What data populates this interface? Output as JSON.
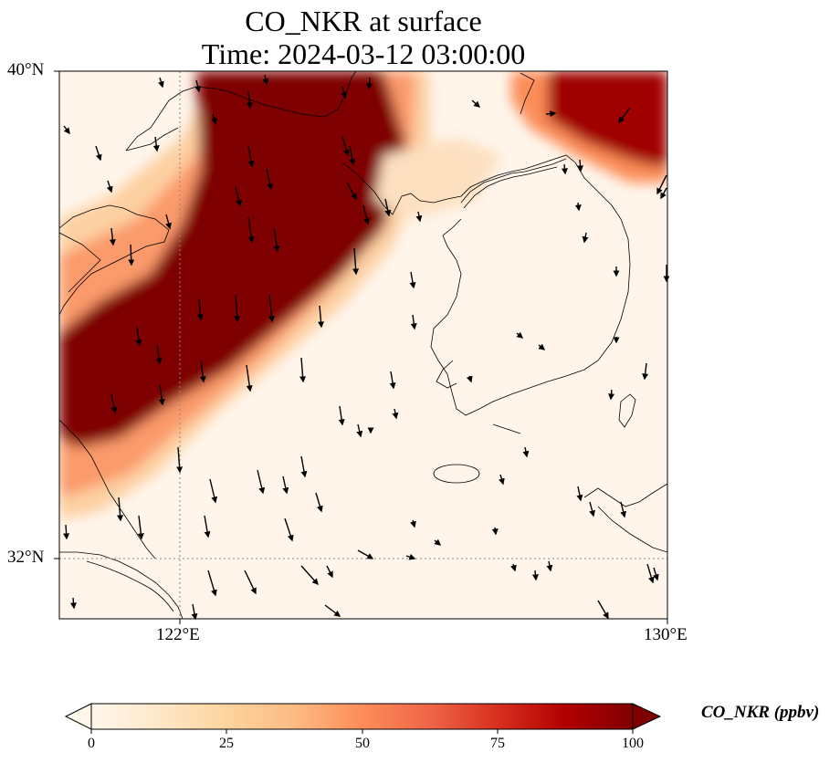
{
  "title": {
    "line1": "CO_NKR at surface",
    "line2": "Time: 2024-03-12 03:00:00"
  },
  "map": {
    "lat_ticks": [
      "40°N",
      "32°N"
    ],
    "lon_ticks": [
      "122°E",
      "130°E"
    ],
    "extent": {
      "lon": [
        120,
        130
      ],
      "lat": [
        31,
        40
      ]
    },
    "gridlines": {
      "lon": 122,
      "lat": 32,
      "style": "dotted"
    },
    "field_colors": {
      "low": "#fff5eb",
      "mid": "#fdae6b",
      "high": "#7f0000"
    }
  },
  "colorbar": {
    "label": "CO_NKR (ppbv)",
    "ticks": [
      "0",
      "25",
      "50",
      "75",
      "100"
    ],
    "range": [
      0,
      100
    ],
    "extend": "both",
    "colormap": "OrRd"
  }
}
